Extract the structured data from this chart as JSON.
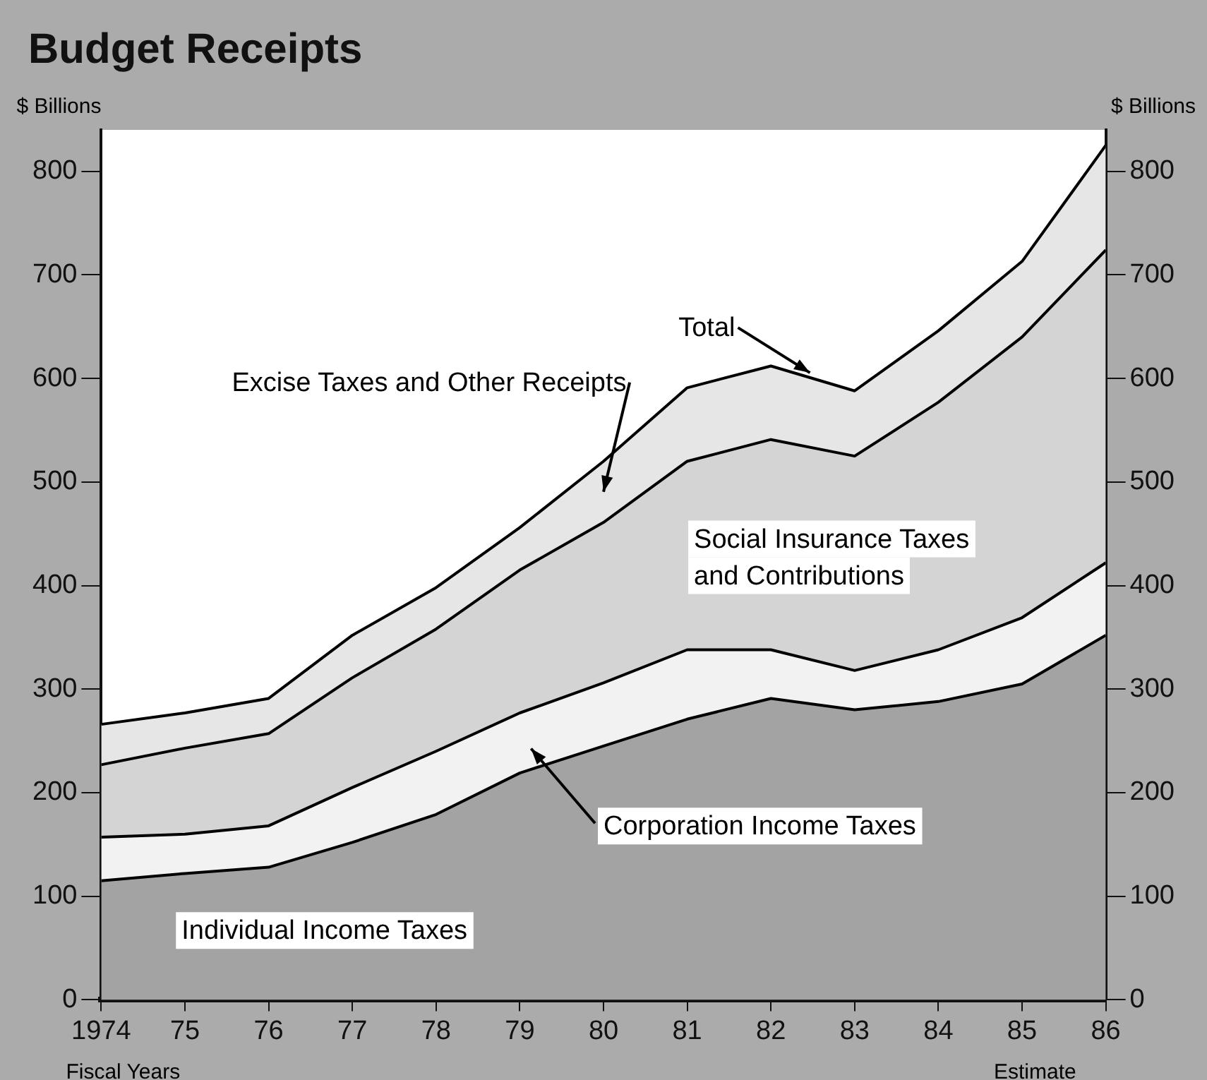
{
  "chart_data": {
    "type": "area",
    "title": "Budget Receipts",
    "ylabel": "$ Billions",
    "y2label": "$ Billions",
    "stacked": true,
    "legend": false,
    "grid": false,
    "x": [
      1974,
      1975,
      1976,
      1977,
      1978,
      1979,
      1980,
      1981,
      1982,
      1983,
      1984,
      1985,
      1986
    ],
    "xlim": [
      1974,
      1986
    ],
    "xticks": [
      {
        "value": 1974,
        "label": "1974"
      },
      {
        "value": 1975,
        "label": "75"
      },
      {
        "value": 1976,
        "label": "76"
      },
      {
        "value": 1977,
        "label": "77"
      },
      {
        "value": 1978,
        "label": "78"
      },
      {
        "value": 1979,
        "label": "79"
      },
      {
        "value": 1980,
        "label": "80"
      },
      {
        "value": 1981,
        "label": "81"
      },
      {
        "value": 1982,
        "label": "82"
      },
      {
        "value": 1983,
        "label": "83"
      },
      {
        "value": 1984,
        "label": "84"
      },
      {
        "value": 1985,
        "label": "85"
      },
      {
        "value": 1986,
        "label": "86"
      }
    ],
    "ylim": [
      0,
      840
    ],
    "yticks": [
      0,
      100,
      200,
      300,
      400,
      500,
      600,
      700,
      800
    ],
    "y2lim": [
      0,
      840
    ],
    "y2ticks": [
      0,
      100,
      200,
      300,
      400,
      500,
      600,
      700,
      800
    ],
    "series": [
      {
        "name": "Individual Income Taxes",
        "color": "#a3a3a3",
        "values": [
          115,
          122,
          128,
          152,
          179,
          219,
          245,
          271,
          291,
          280,
          288,
          305,
          352
        ]
      },
      {
        "name": "Corporation Income Taxes",
        "color": "#f2f2f2",
        "values": [
          42,
          38,
          40,
          53,
          61,
          58,
          61,
          67,
          47,
          38,
          50,
          64,
          70
        ]
      },
      {
        "name": "Social Insurance Taxes and Contributions",
        "color": "#d4d4d4",
        "values": [
          70,
          83,
          89,
          106,
          118,
          138,
          155,
          182,
          203,
          207,
          239,
          271,
          302
        ]
      },
      {
        "name": "Excise Taxes and Other Receipts",
        "color": "#e6e6e6",
        "values": [
          39,
          34,
          34,
          41,
          40,
          41,
          59,
          71,
          71,
          63,
          69,
          73,
          101
        ]
      }
    ],
    "annotations": [
      {
        "text": "Total",
        "x": 1982.5,
        "y": 600
      },
      "Fiscal Years",
      "Estimate"
    ]
  }
}
